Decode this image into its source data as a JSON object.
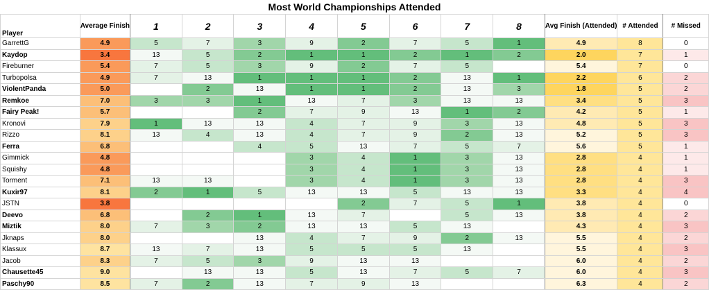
{
  "title": "Most World Championships Attended",
  "headers": {
    "player": "Player",
    "average_finish": "Average Finish",
    "events": [
      "1",
      "2",
      "3",
      "4",
      "5",
      "6",
      "7",
      "8"
    ],
    "avg_finish_attended": "Avg Finish (Attended)",
    "attended": "# Attended",
    "missed": "# Missed"
  },
  "colors": {
    "green_scale": [
      "#63be7b",
      "#83ca93",
      "#a1d6aa",
      "#c6e6cc",
      "#e4f2e6",
      "#f4f9f5"
    ],
    "orange_scale": [
      "#f8763e",
      "#fa9a5a",
      "#fcbf78",
      "#fdd18a",
      "#fee3a0"
    ],
    "yellow_avgatt": [
      "#fed55e",
      "#ffdf82",
      "#ffeab3",
      "#fff5dc"
    ],
    "attended_bg": "#ffe699",
    "missed_scale": [
      "#fde9e9",
      "#fbd6d6",
      "#f9c4c4"
    ]
  },
  "chart_data": {
    "type": "table",
    "title": "Most World Championships Attended",
    "rows": [
      {
        "player": "GarrettG",
        "bold": false,
        "average_finish": "4.9",
        "events": [
          "5",
          "7",
          "3",
          "9",
          "2",
          "7",
          "5",
          "1"
        ],
        "avg_finish_attended": "4.9",
        "attended": "8",
        "missed": "0"
      },
      {
        "player": "Kaydop",
        "bold": true,
        "average_finish": "3.4",
        "events": [
          "13",
          "5",
          "2",
          "1",
          "1",
          "2",
          "1",
          "2"
        ],
        "avg_finish_attended": "2.0",
        "attended": "7",
        "missed": "1"
      },
      {
        "player": "Fireburner",
        "bold": false,
        "average_finish": "5.4",
        "events": [
          "7",
          "5",
          "3",
          "9",
          "2",
          "7",
          "5",
          ""
        ],
        "avg_finish_attended": "5.4",
        "attended": "7",
        "missed": "0"
      },
      {
        "player": "Turbopolsa",
        "bold": false,
        "average_finish": "4.9",
        "events": [
          "7",
          "13",
          "1",
          "1",
          "1",
          "2",
          "13",
          "1"
        ],
        "avg_finish_attended": "2.2",
        "attended": "6",
        "missed": "2"
      },
      {
        "player": "ViolentPanda",
        "bold": true,
        "average_finish": "5.0",
        "events": [
          "",
          "2",
          "13",
          "1",
          "1",
          "2",
          "13",
          "3"
        ],
        "avg_finish_attended": "1.8",
        "attended": "5",
        "missed": "2"
      },
      {
        "player": "Remkoe",
        "bold": true,
        "average_finish": "7.0",
        "events": [
          "3",
          "3",
          "1",
          "13",
          "7",
          "3",
          "13",
          "13"
        ],
        "avg_finish_attended": "3.4",
        "attended": "5",
        "missed": "3"
      },
      {
        "player": "Fairy Peak!",
        "bold": true,
        "average_finish": "5.7",
        "events": [
          "",
          "",
          "2",
          "7",
          "9",
          "13",
          "1",
          "2"
        ],
        "avg_finish_attended": "4.2",
        "attended": "5",
        "missed": "1"
      },
      {
        "player": "Kronovi",
        "bold": false,
        "average_finish": "7.9",
        "events": [
          "1",
          "13",
          "13",
          "4",
          "7",
          "9",
          "3",
          "13"
        ],
        "avg_finish_attended": "4.8",
        "attended": "5",
        "missed": "3"
      },
      {
        "player": "Rizzo",
        "bold": false,
        "average_finish": "8.1",
        "events": [
          "13",
          "4",
          "13",
          "4",
          "7",
          "9",
          "2",
          "13"
        ],
        "avg_finish_attended": "5.2",
        "attended": "5",
        "missed": "3"
      },
      {
        "player": "Ferra",
        "bold": true,
        "average_finish": "6.8",
        "events": [
          "",
          "",
          "4",
          "5",
          "13",
          "7",
          "5",
          "7"
        ],
        "avg_finish_attended": "5.6",
        "attended": "5",
        "missed": "1"
      },
      {
        "player": "Gimmick",
        "bold": false,
        "average_finish": "4.8",
        "events": [
          "",
          "",
          "",
          "3",
          "4",
          "1",
          "3",
          "13"
        ],
        "avg_finish_attended": "2.8",
        "attended": "4",
        "missed": "1"
      },
      {
        "player": "Squishy",
        "bold": false,
        "average_finish": "4.8",
        "events": [
          "",
          "",
          "",
          "3",
          "4",
          "1",
          "3",
          "13"
        ],
        "avg_finish_attended": "2.8",
        "attended": "4",
        "missed": "1"
      },
      {
        "player": "Torment",
        "bold": false,
        "average_finish": "7.1",
        "events": [
          "13",
          "13",
          "",
          "3",
          "4",
          "1",
          "3",
          "13"
        ],
        "avg_finish_attended": "2.8",
        "attended": "4",
        "missed": "3"
      },
      {
        "player": "Kuxir97",
        "bold": true,
        "average_finish": "8.1",
        "events": [
          "2",
          "1",
          "5",
          "13",
          "13",
          "5",
          "13",
          "13"
        ],
        "avg_finish_attended": "3.3",
        "attended": "4",
        "missed": "4"
      },
      {
        "player": "JSTN",
        "bold": false,
        "average_finish": "3.8",
        "events": [
          "",
          "",
          "",
          "",
          "2",
          "7",
          "5",
          "1"
        ],
        "avg_finish_attended": "3.8",
        "attended": "4",
        "missed": "0"
      },
      {
        "player": "Deevo",
        "bold": true,
        "average_finish": "6.8",
        "events": [
          "",
          "2",
          "1",
          "13",
          "7",
          "",
          "5",
          "13"
        ],
        "avg_finish_attended": "3.8",
        "attended": "4",
        "missed": "2"
      },
      {
        "player": "Miztik",
        "bold": true,
        "average_finish": "8.0",
        "events": [
          "7",
          "3",
          "2",
          "13",
          "13",
          "5",
          "13",
          ""
        ],
        "avg_finish_attended": "4.3",
        "attended": "4",
        "missed": "3"
      },
      {
        "player": "Jknaps",
        "bold": false,
        "average_finish": "8.0",
        "events": [
          "",
          "",
          "13",
          "4",
          "7",
          "9",
          "2",
          "13"
        ],
        "avg_finish_attended": "5.5",
        "attended": "4",
        "missed": "2"
      },
      {
        "player": "Klassux",
        "bold": false,
        "average_finish": "8.7",
        "events": [
          "13",
          "7",
          "13",
          "5",
          "5",
          "5",
          "13",
          ""
        ],
        "avg_finish_attended": "5.5",
        "attended": "4",
        "missed": "3"
      },
      {
        "player": "Jacob",
        "bold": false,
        "average_finish": "8.3",
        "events": [
          "7",
          "5",
          "3",
          "9",
          "13",
          "13",
          "",
          ""
        ],
        "avg_finish_attended": "6.0",
        "attended": "4",
        "missed": "2"
      },
      {
        "player": "Chausette45",
        "bold": true,
        "average_finish": "9.0",
        "events": [
          "",
          "13",
          "13",
          "5",
          "13",
          "7",
          "5",
          "7"
        ],
        "avg_finish_attended": "6.0",
        "attended": "4",
        "missed": "3"
      },
      {
        "player": "Paschy90",
        "bold": true,
        "average_finish": "8.5",
        "events": [
          "7",
          "2",
          "13",
          "7",
          "9",
          "13",
          "",
          ""
        ],
        "avg_finish_attended": "6.3",
        "attended": "4",
        "missed": "2"
      }
    ]
  }
}
